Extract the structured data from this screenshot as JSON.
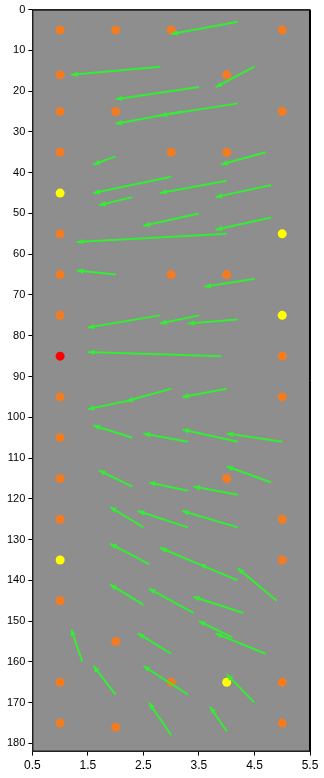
{
  "chart_data": {
    "type": "scatter",
    "xlim": [
      0.5,
      5.5
    ],
    "xticks": [
      0.5,
      1.5,
      2.5,
      3.5,
      4.5,
      5.5
    ],
    "ylim": [
      182,
      0
    ],
    "yticks": [
      0,
      10,
      20,
      30,
      40,
      50,
      60,
      70,
      80,
      90,
      100,
      110,
      120,
      130,
      140,
      150,
      160,
      170,
      180
    ],
    "grid": true,
    "series": [
      {
        "type": "scatter",
        "color": "#f47c20",
        "marker": "circle",
        "x": [
          1,
          2,
          3,
          5,
          1,
          4,
          1,
          2,
          5,
          1,
          3,
          4,
          1,
          1,
          3,
          4,
          1,
          5,
          1,
          5,
          1,
          1,
          4,
          1,
          5,
          5,
          1,
          2,
          1,
          3,
          5,
          1,
          2,
          5
        ],
        "y": [
          5,
          5,
          5,
          5,
          16,
          16,
          25,
          25,
          25,
          35,
          35,
          35,
          55,
          65,
          65,
          65,
          75,
          85,
          95,
          95,
          105,
          115,
          115,
          125,
          125,
          135,
          145,
          155,
          165,
          165,
          165,
          175,
          176,
          175
        ]
      },
      {
        "type": "scatter",
        "color": "#ffff00",
        "marker": "circle",
        "x": [
          1,
          5,
          5,
          1,
          4
        ],
        "y": [
          45,
          55,
          75,
          135,
          165
        ]
      },
      {
        "type": "scatter",
        "color": "#ff0000",
        "marker": "circle",
        "x": [
          1
        ],
        "y": [
          85
        ]
      },
      {
        "type": "vector",
        "color": "#33ee33",
        "x": [
          4.2,
          2.8,
          4.5,
          3.5,
          4.2,
          3.2,
          4.7,
          2.0,
          3.0,
          4.0,
          4.8,
          2.3,
          3.5,
          4.8,
          4.0,
          2.0,
          4.5,
          2.8,
          3.5,
          4.2,
          3.9,
          4.0,
          3.0,
          2.2,
          2.3,
          3.3,
          4.2,
          5.0,
          2.3,
          4.8,
          3.3,
          4.2,
          2.5,
          3.3,
          4.2,
          2.6,
          3.5,
          4.2,
          4.9,
          2.5,
          3.4,
          4.3,
          1.4,
          3.0,
          4.1,
          4.7,
          2.0,
          3.3,
          4.5,
          3.0,
          4.0
        ],
        "y": [
          3,
          14,
          14,
          19,
          23,
          25,
          35,
          36,
          41,
          42,
          43,
          46,
          50,
          51,
          55,
          65,
          66,
          75,
          75,
          76,
          85,
          93,
          93,
          96,
          105,
          106,
          106,
          106,
          117,
          116,
          118,
          119,
          127,
          127,
          127,
          136,
          136,
          140,
          145,
          146,
          148,
          148,
          160,
          158,
          154,
          158,
          168,
          168,
          170,
          178,
          177
        ],
        "x_end": [
          3.0,
          1.2,
          3.8,
          2.0,
          2.8,
          2.0,
          3.9,
          1.6,
          1.6,
          2.8,
          3.8,
          1.7,
          2.5,
          3.8,
          1.3,
          1.3,
          3.6,
          1.5,
          2.8,
          3.3,
          1.5,
          3.2,
          2.2,
          1.5,
          1.6,
          2.5,
          3.2,
          4.0,
          1.7,
          4.0,
          2.6,
          3.4,
          1.9,
          2.4,
          3.2,
          1.9,
          2.8,
          3.5,
          4.2,
          1.9,
          2.6,
          3.4,
          1.2,
          2.4,
          3.5,
          3.8,
          1.6,
          2.5,
          4.0,
          2.6,
          3.7
        ],
        "y_end": [
          6,
          16,
          19,
          22,
          26,
          28,
          38,
          38,
          45,
          45,
          46,
          48,
          53,
          54,
          57,
          64,
          68,
          78,
          77,
          77,
          84,
          95,
          96,
          98,
          102,
          104,
          103,
          104,
          113,
          112,
          116,
          117,
          122,
          123,
          123,
          131,
          132,
          136,
          137,
          141,
          142,
          144,
          152,
          153,
          150,
          153,
          161,
          161,
          163,
          170,
          171
        ]
      }
    ]
  }
}
